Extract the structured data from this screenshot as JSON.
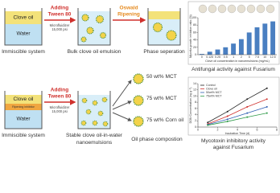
{
  "process": {
    "top": {
      "layers": [
        "Clove oil",
        "Water"
      ],
      "system_label": "Immiscible system",
      "add_step": [
        "Adding",
        "Tween 80"
      ],
      "device": [
        "Microfluidizer",
        "15,000 psi"
      ],
      "emulsion_label": "Bulk clove oil emulsion",
      "ripening_step": [
        "Oswald",
        "Ripening"
      ],
      "separation_label": "Phase seperation"
    },
    "bottom": {
      "layers": [
        "Clove oil",
        "Ripening inhibitor",
        "Water"
      ],
      "system_label": "Immiscible system",
      "add_step": [
        "Adding",
        "Tween 80"
      ],
      "device": [
        "Microfluidizer",
        "15,000 psi"
      ],
      "emulsion_label": [
        "Stable clove oil-in-water",
        "nanoemulsions"
      ],
      "oil_options": [
        "50 wt% MCT",
        "75 wt% MCT",
        "75 wt% Corn oil"
      ],
      "oil_label": "Oil phase compostion"
    }
  },
  "charts": [
    {
      "type": "bar",
      "caption": "Antifungal activity against Fusarium",
      "y_label": "Mycelia growth inhibition ratio (%)",
      "x_label": "Clove oil concentration in nanoemulsions (mg/mL)",
      "categories": [
        "0",
        "0.125",
        "0.25",
        "0.5",
        "1",
        "2",
        "5",
        "7.5",
        "10",
        "12.5"
      ],
      "values": [
        2,
        8,
        14,
        20,
        30,
        42,
        60,
        74,
        84,
        90
      ],
      "color": "#4a7fc1",
      "ylim": [
        0,
        100
      ],
      "yticks": [
        0,
        20,
        40,
        60,
        80,
        100
      ]
    },
    {
      "type": "line",
      "caption": [
        "Mycotoxin inhibitory activity",
        "against Fusarium"
      ],
      "y_label": "DON Concentration (ng g⁻¹)",
      "x_label": "Incubation Time (d)",
      "x": [
        1,
        3,
        5,
        7
      ],
      "xlim": [
        0,
        8
      ],
      "xticks": [
        0,
        2,
        4,
        6,
        8
      ],
      "ylim": [
        0,
        14
      ],
      "yticks": [
        0,
        2,
        4,
        6,
        8,
        10,
        12,
        14
      ],
      "series": [
        {
          "name": "Control",
          "color": "#222222",
          "values": [
            1.5,
            5,
            9,
            12.5
          ]
        },
        {
          "name": "Clove oil",
          "color": "#d0312d",
          "values": [
            1,
            3.5,
            6.5,
            9
          ]
        },
        {
          "name": "50wt% MCT",
          "color": "#2f5fb3",
          "values": [
            0.8,
            2.5,
            4.5,
            6.5
          ]
        },
        {
          "name": "75wt% MCT",
          "color": "#2e9a48",
          "values": [
            0.6,
            1.8,
            3.2,
            4.5
          ]
        }
      ]
    }
  ]
}
